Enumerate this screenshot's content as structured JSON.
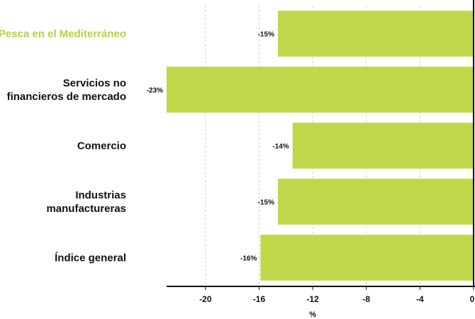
{
  "chart_data": {
    "type": "bar",
    "orientation": "horizontal",
    "categories": [
      [
        "Pesca en el Mediterráneo"
      ],
      [
        "Servicios no",
        "financieros de mercado"
      ],
      [
        "Comercio"
      ],
      [
        "Industrias",
        "manufactureras"
      ],
      [
        "Índice general"
      ]
    ],
    "values": [
      -14.6,
      -22.9,
      -13.5,
      -14.6,
      -15.9
    ],
    "data_labels": [
      "-15%",
      "-23%",
      "-14%",
      "-15%",
      "-16%"
    ],
    "highlight_category_index": 0,
    "xlabel": "%",
    "xlim": [
      -22.9,
      0
    ],
    "xticks": [
      -20,
      -16,
      -12,
      -8,
      -4,
      0
    ],
    "xtick_labels": [
      "-20",
      "-16",
      "-12",
      "-8",
      "-4",
      "0"
    ],
    "grid": "vertical dashed",
    "colors": {
      "bar": "#bfd84a",
      "highlight_label": "#b5d33a",
      "text": "#111111",
      "grid": "#cfcfcf",
      "axis": "#111111"
    }
  }
}
